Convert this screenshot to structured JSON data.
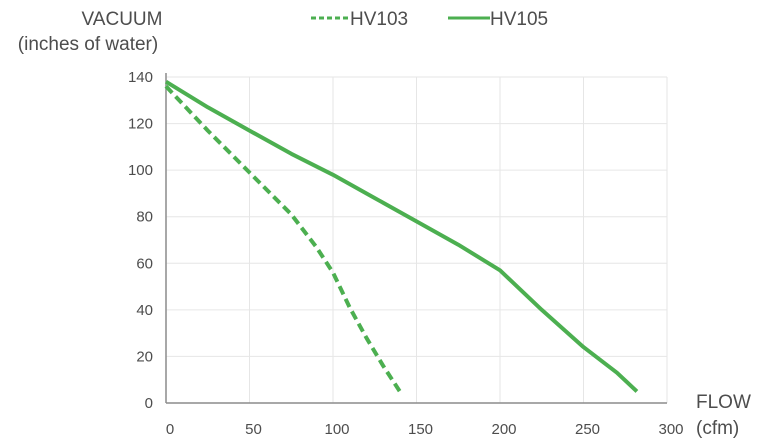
{
  "chart_data": {
    "type": "line",
    "ylabel_lines": [
      "VACUUM",
      "(inches of water)"
    ],
    "xlabel_lines": [
      "FLOW",
      "(cfm)"
    ],
    "xlim": [
      0,
      300
    ],
    "ylim": [
      0,
      140
    ],
    "xticks": [
      0,
      50,
      100,
      150,
      200,
      250,
      300
    ],
    "yticks": [
      0,
      20,
      40,
      60,
      80,
      100,
      120,
      140
    ],
    "grid": true,
    "legend_position": "top",
    "series": [
      {
        "name": "HV103",
        "style": "dashed",
        "color": "#4caf50",
        "points": [
          [
            0,
            136
          ],
          [
            25,
            117
          ],
          [
            50,
            99
          ],
          [
            75,
            81
          ],
          [
            90,
            67
          ],
          [
            100,
            56
          ],
          [
            110,
            41
          ],
          [
            120,
            28
          ],
          [
            130,
            16
          ],
          [
            140,
            5
          ]
        ]
      },
      {
        "name": "HV105",
        "style": "solid",
        "color": "#4caf50",
        "points": [
          [
            0,
            138
          ],
          [
            25,
            127
          ],
          [
            50,
            117
          ],
          [
            75,
            107
          ],
          [
            100,
            98
          ],
          [
            125,
            88
          ],
          [
            150,
            78
          ],
          [
            175,
            68
          ],
          [
            200,
            57
          ],
          [
            225,
            40
          ],
          [
            250,
            24
          ],
          [
            270,
            13
          ],
          [
            282,
            5
          ]
        ]
      }
    ]
  }
}
